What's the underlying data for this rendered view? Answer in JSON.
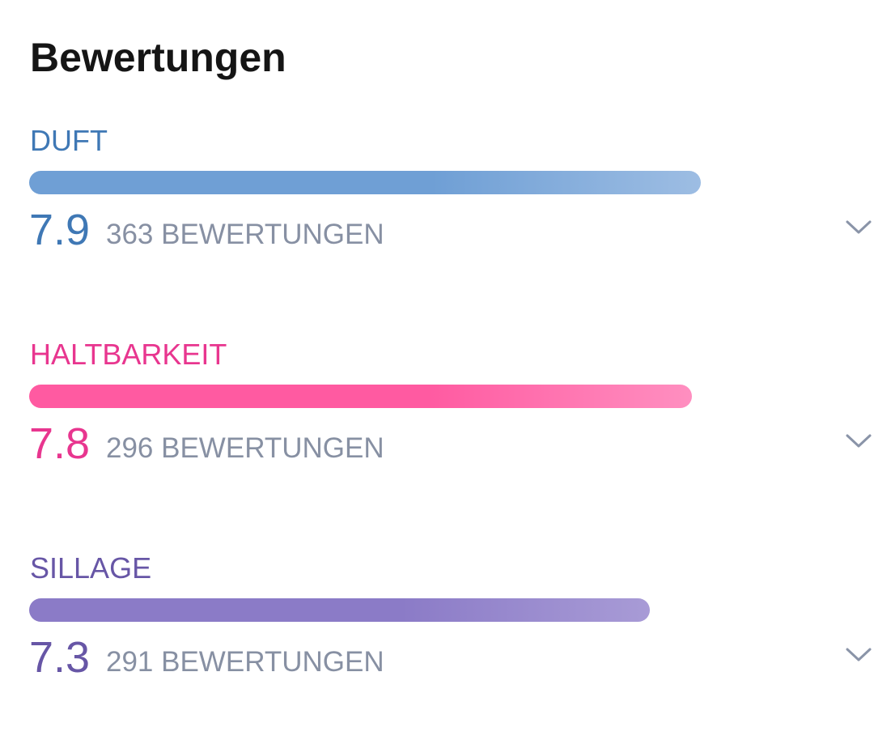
{
  "header": {
    "title": "Bewertungen"
  },
  "ratings": [
    {
      "label": "DUFT",
      "score": 7.9,
      "count": "363 BEWERTUNGEN",
      "label_color": "#3f78b5",
      "bar_color": "#6f9fd5",
      "bar_color_end": "#9dbde3"
    },
    {
      "label": "HALTBARKEIT",
      "score": 7.8,
      "count": "296 BEWERTUNGEN",
      "label_color": "#e8368f",
      "bar_color": "#ff5aa1",
      "bar_color_end": "#ff8fc0"
    },
    {
      "label": "SILLAGE",
      "score": 7.3,
      "count": "291 BEWERTUNGEN",
      "label_color": "#6756a6",
      "bar_color": "#8b7bc7",
      "bar_color_end": "#a89bd6"
    }
  ]
}
